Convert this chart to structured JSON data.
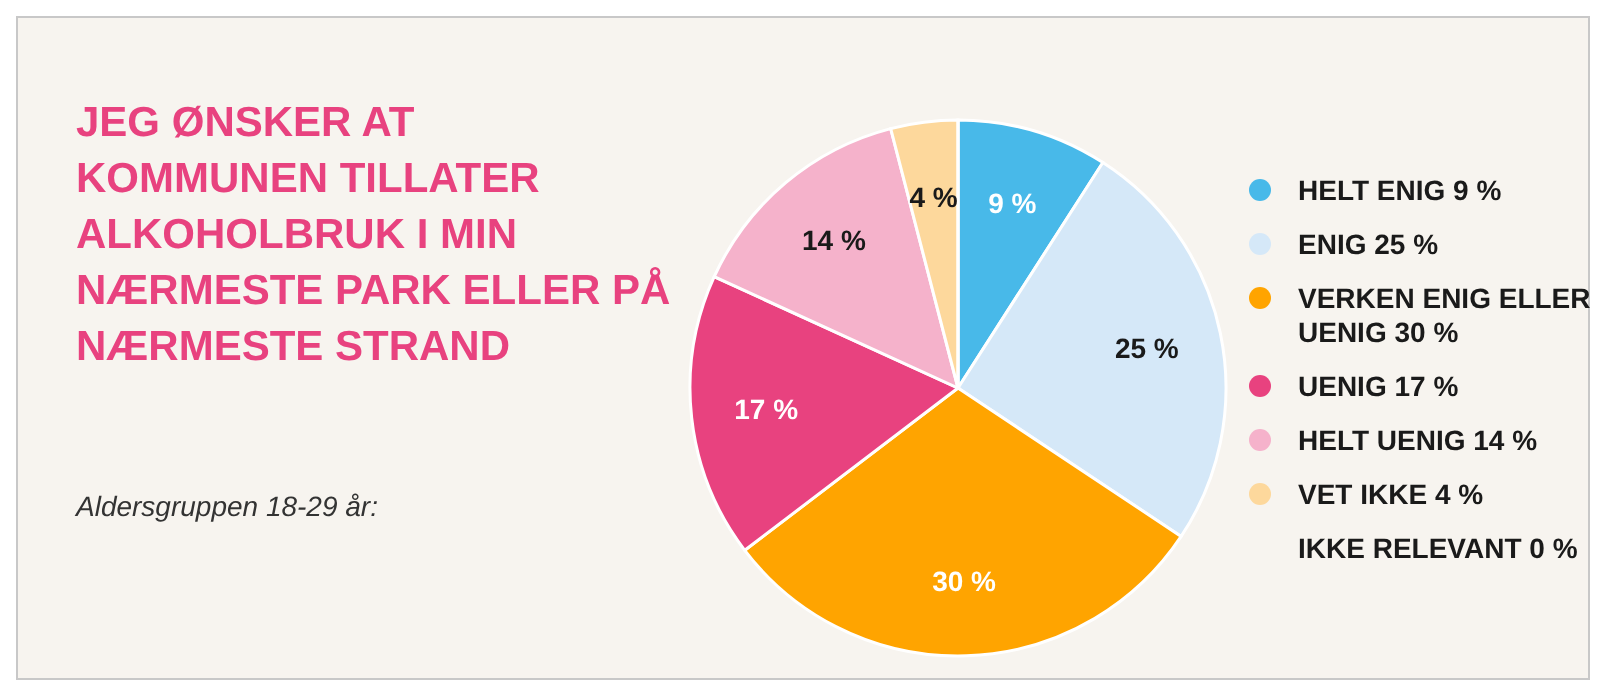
{
  "chart_data": {
    "type": "pie",
    "title": "JEG ØNSKER AT KOMMUNEN TILLATER ALKOHOLBRUK I MIN NÆRMESTE PARK ELLER PÅ NÆRMESTE STRAND",
    "subtitle": "Aldersgruppen 18-29 år:",
    "categories": [
      "HELT ENIG",
      "ENIG",
      "VERKEN ENIG ELLER UENIG",
      "UENIG",
      "HELT UENIG",
      "VET IKKE",
      "IKKE RELEVANT"
    ],
    "values": [
      9,
      25,
      30,
      17,
      14,
      4,
      0
    ],
    "value_labels": [
      "9 %",
      "25 %",
      "30 %",
      "17 %",
      "14 %",
      "4 %",
      "0 %"
    ],
    "colors": [
      "#48b9e9",
      "#d5e8f8",
      "#ffa400",
      "#e8427f",
      "#f5b2cb",
      "#fdd89c",
      null
    ],
    "legend": "right"
  }
}
